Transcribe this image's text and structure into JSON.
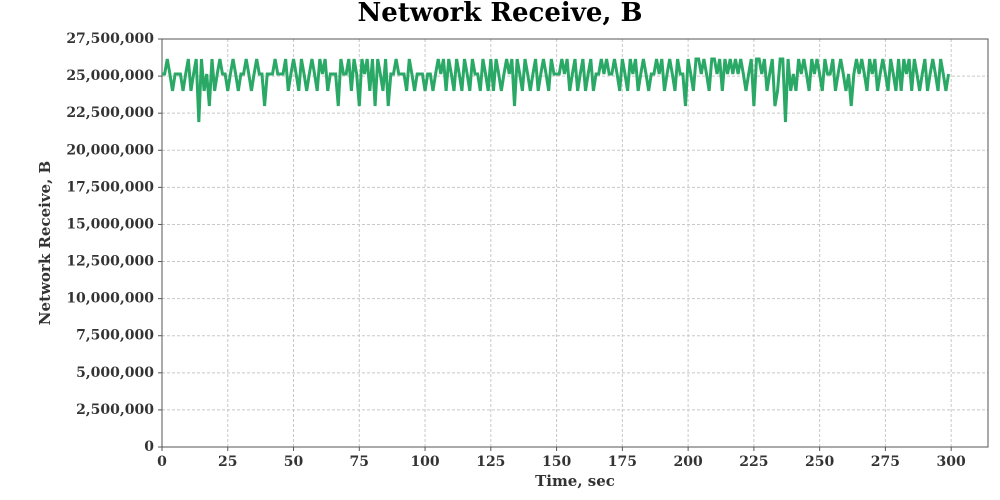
{
  "chart_data": {
    "type": "line",
    "title": "Network Receive, B",
    "x_label": "Time, sec",
    "y_label": "Network Receive, B",
    "xlim": [
      0,
      314
    ],
    "xticks": [
      0,
      25,
      50,
      75,
      100,
      125,
      150,
      175,
      200,
      225,
      250,
      275,
      300
    ],
    "ylim": [
      0,
      27500000
    ],
    "yticks": [
      0,
      {
        "value": 2500000,
        "label": "2,500,000"
      },
      {
        "value": 5000000,
        "label": "5,000,000"
      },
      {
        "value": 7500000,
        "label": "7,500,000"
      },
      {
        "value": 10000000,
        "label": "10,000,000"
      },
      {
        "value": 12500000,
        "label": "12,500,000"
      },
      {
        "value": 15000000,
        "label": "15,000,000"
      },
      {
        "value": 17500000,
        "label": "17,500,000"
      },
      {
        "value": 20000000,
        "label": "20,000,000"
      },
      {
        "value": 22500000,
        "label": "22,500,000"
      },
      {
        "value": 25000000,
        "label": "25,000,000"
      },
      {
        "value": 27500000,
        "label": "27,500,000"
      }
    ],
    "grid": true,
    "x": [
      0,
      1,
      2,
      3,
      4,
      5,
      6,
      7,
      8,
      9,
      10,
      11,
      12,
      13,
      14,
      15,
      16,
      17,
      18,
      19,
      20,
      21,
      22,
      23,
      24,
      25,
      26,
      27,
      28,
      29,
      30,
      31,
      32,
      33,
      34,
      35,
      36,
      37,
      38,
      39,
      40,
      41,
      42,
      43,
      44,
      45,
      46,
      47,
      48,
      49,
      50,
      51,
      52,
      53,
      54,
      55,
      56,
      57,
      58,
      59,
      60,
      61,
      62,
      63,
      64,
      65,
      66,
      67,
      68,
      69,
      70,
      71,
      72,
      73,
      74,
      75,
      76,
      77,
      78,
      79,
      80,
      81,
      82,
      83,
      84,
      85,
      86,
      87,
      88,
      89,
      90,
      91,
      92,
      93,
      94,
      95,
      96,
      97,
      98,
      99,
      100,
      101,
      102,
      103,
      104,
      105,
      106,
      107,
      108,
      109,
      110,
      111,
      112,
      113,
      114,
      115,
      116,
      117,
      118,
      119,
      120,
      121,
      122,
      123,
      124,
      125,
      126,
      127,
      128,
      129,
      130,
      131,
      132,
      133,
      134,
      135,
      136,
      137,
      138,
      139,
      140,
      141,
      142,
      143,
      144,
      145,
      146,
      147,
      148,
      149,
      150,
      151,
      152,
      153,
      154,
      155,
      156,
      157,
      158,
      159,
      160,
      161,
      162,
      163,
      164,
      165,
      166,
      167,
      168,
      169,
      170,
      171,
      172,
      173,
      174,
      175,
      176,
      177,
      178,
      179,
      180,
      181,
      182,
      183,
      184,
      185,
      186,
      187,
      188,
      189,
      190,
      191,
      192,
      193,
      194,
      195,
      196,
      197,
      198,
      199,
      200,
      201,
      202,
      203,
      204,
      205,
      206,
      207,
      208,
      209,
      210,
      211,
      212,
      213,
      214,
      215,
      216,
      217,
      218,
      219,
      220,
      221,
      222,
      223,
      224,
      225,
      226,
      227,
      228,
      229,
      230,
      231,
      232,
      233,
      234,
      235,
      236,
      237,
      238,
      239,
      240,
      241,
      242,
      243,
      244,
      245,
      246,
      247,
      248,
      249,
      250,
      251,
      252,
      253,
      254,
      255,
      256,
      257,
      258,
      259,
      260,
      261,
      262,
      263,
      264,
      265,
      266,
      267,
      268,
      269,
      270,
      271,
      272,
      273,
      274,
      275,
      276,
      277,
      278,
      279,
      280,
      281,
      282,
      283,
      284,
      285,
      286,
      287,
      288,
      289,
      290,
      291,
      292,
      293,
      294,
      295,
      296,
      297,
      298,
      299
    ],
    "series": [
      {
        "color": "#2aa866",
        "values": [
          25140000,
          25140000,
          26150000,
          25140000,
          24000000,
          25140000,
          25140000,
          25140000,
          24000000,
          25140000,
          26150000,
          24000000,
          25140000,
          26150000,
          21900000,
          26150000,
          24000000,
          25140000,
          22980000,
          26150000,
          24000000,
          25140000,
          26150000,
          25140000,
          25140000,
          24000000,
          25140000,
          26150000,
          25140000,
          24000000,
          25140000,
          25140000,
          26150000,
          25140000,
          24000000,
          25140000,
          26150000,
          25140000,
          25140000,
          22980000,
          25140000,
          25140000,
          25140000,
          26150000,
          25140000,
          25140000,
          25140000,
          26150000,
          24000000,
          25140000,
          26150000,
          25140000,
          24000000,
          26150000,
          25140000,
          24000000,
          25140000,
          26150000,
          25140000,
          24000000,
          26150000,
          25140000,
          26150000,
          24000000,
          25140000,
          25140000,
          25140000,
          22980000,
          26150000,
          25140000,
          25140000,
          26150000,
          24000000,
          26150000,
          25140000,
          22980000,
          26150000,
          25140000,
          26150000,
          24000000,
          26150000,
          22980000,
          26150000,
          25140000,
          24000000,
          26150000,
          22980000,
          25140000,
          25140000,
          26150000,
          25140000,
          25140000,
          25140000,
          24000000,
          26150000,
          25140000,
          24000000,
          25140000,
          25140000,
          25140000,
          24000000,
          25140000,
          25140000,
          24000000,
          25140000,
          26150000,
          25140000,
          26150000,
          24000000,
          26150000,
          25140000,
          24000000,
          26150000,
          25140000,
          24000000,
          26150000,
          25140000,
          24000000,
          26150000,
          25140000,
          25140000,
          24000000,
          26150000,
          25140000,
          24000000,
          26150000,
          24000000,
          26150000,
          25140000,
          24000000,
          25140000,
          26150000,
          25140000,
          26150000,
          22980000,
          26150000,
          25140000,
          24000000,
          26150000,
          25140000,
          24000000,
          25140000,
          26150000,
          24000000,
          25140000,
          26150000,
          25140000,
          24000000,
          26150000,
          25140000,
          25140000,
          25140000,
          26150000,
          25140000,
          26150000,
          24000000,
          25140000,
          26150000,
          24000000,
          25140000,
          26150000,
          24000000,
          25140000,
          26150000,
          24000000,
          25140000,
          25140000,
          26150000,
          25140000,
          26150000,
          25140000,
          25140000,
          26150000,
          25140000,
          24000000,
          26150000,
          25140000,
          24000000,
          26150000,
          25140000,
          26150000,
          24000000,
          25140000,
          26150000,
          25140000,
          24000000,
          25140000,
          25140000,
          26150000,
          25140000,
          26150000,
          24000000,
          25140000,
          26150000,
          25140000,
          24000000,
          26150000,
          25140000,
          25140000,
          22980000,
          26150000,
          25140000,
          24000000,
          26150000,
          26150000,
          25140000,
          26150000,
          25140000,
          24000000,
          26150000,
          26150000,
          25140000,
          26150000,
          24000000,
          26150000,
          25140000,
          26150000,
          25140000,
          26150000,
          25140000,
          26150000,
          25140000,
          24000000,
          25140000,
          26150000,
          22980000,
          26150000,
          26150000,
          25140000,
          26150000,
          24000000,
          25140000,
          26150000,
          22980000,
          24000000,
          26150000,
          26150000,
          21900000,
          26150000,
          24000000,
          25140000,
          24000000,
          26150000,
          25140000,
          26150000,
          25140000,
          24000000,
          26150000,
          25140000,
          26150000,
          25140000,
          24000000,
          26150000,
          25140000,
          25140000,
          26150000,
          24000000,
          25140000,
          26150000,
          25140000,
          24000000,
          25140000,
          22980000,
          25140000,
          26150000,
          25140000,
          26150000,
          25140000,
          24000000,
          26150000,
          25140000,
          26150000,
          24000000,
          25140000,
          26150000,
          25140000,
          24000000,
          26150000,
          25140000,
          24000000,
          26150000,
          24000000,
          26150000,
          25140000,
          26150000,
          24000000,
          26150000,
          25140000,
          24000000,
          25140000,
          26150000,
          24000000,
          25140000,
          26150000,
          25140000,
          24000000,
          26150000,
          25140000,
          24000000,
          25140000
        ]
      }
    ]
  }
}
